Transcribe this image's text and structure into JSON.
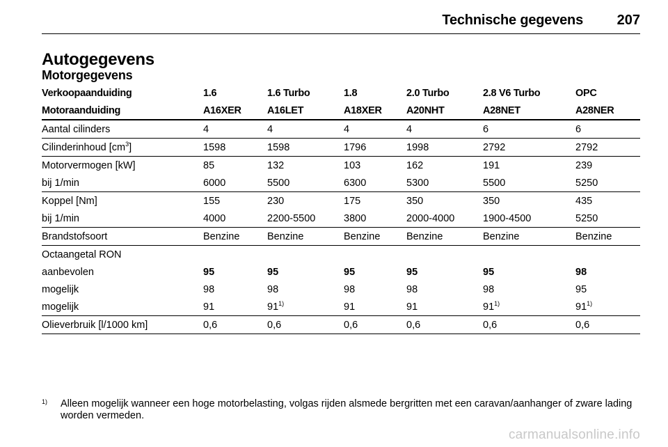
{
  "header": {
    "title": "Technische gegevens",
    "page_number": "207"
  },
  "section_title": "Autogegevens",
  "sub_title": "Motorgegevens",
  "table": {
    "header_rows": [
      [
        "Verkoopaanduiding",
        "1.6",
        "1.6 Turbo",
        "1.8",
        "2.0 Turbo",
        "2.8 V6 Turbo",
        "OPC"
      ],
      [
        "Motoraanduiding",
        "A16XER",
        "A16LET",
        "A18XER",
        "A20NHT",
        "A28NET",
        "A28NER"
      ]
    ],
    "cylinders": [
      "Aantal cilinders",
      "4",
      "4",
      "4",
      "4",
      "6",
      "6"
    ],
    "displacement": {
      "label": "Cilinderinhoud [cm",
      "label_sup": "3",
      "label_end": "]",
      "values": [
        "1598",
        "1598",
        "1796",
        "1998",
        "2792",
        "2792"
      ]
    },
    "power": [
      "Motorvermogen [kW]",
      "85",
      "132",
      "103",
      "162",
      "191",
      "239"
    ],
    "power_rpm": [
      "bij 1/min",
      "6000",
      "5500",
      "6300",
      "5300",
      "5500",
      "5250"
    ],
    "torque": [
      "Koppel [Nm]",
      "155",
      "230",
      "175",
      "350",
      "350",
      "435"
    ],
    "torque_rpm": [
      "bij 1/min",
      "4000",
      "2200-5500",
      "3800",
      "2000-4000",
      "1900-4500",
      "5250"
    ],
    "fuel": [
      "Brandstofsoort",
      "Benzine",
      "Benzine",
      "Benzine",
      "Benzine",
      "Benzine",
      "Benzine"
    ],
    "octane_label": "Octaangetal RON",
    "recommended": [
      "aanbevolen",
      "95",
      "95",
      "95",
      "95",
      "95",
      "98"
    ],
    "possible_1": [
      "mogelijk",
      "98",
      "98",
      "98",
      "98",
      "98",
      "95"
    ],
    "possible_2": {
      "label": "mogelijk",
      "values": [
        "91",
        "91",
        "91",
        "91",
        "91",
        "91"
      ],
      "sup": [
        "",
        "1)",
        "",
        "",
        "1)",
        "1)"
      ]
    },
    "oil": [
      "Olieverbruik [l/1000 km]",
      "0,6",
      "0,6",
      "0,6",
      "0,6",
      "0,6",
      "0,6"
    ]
  },
  "footnote": {
    "marker": "1)",
    "text": "Alleen mogelijk wanneer een hoge motorbelasting, volgas rijden alsmede bergritten met een caravan/aanhanger of zware lading worden vermeden."
  },
  "watermark": "carmanualsonline.info"
}
